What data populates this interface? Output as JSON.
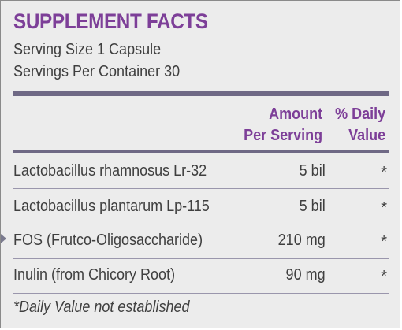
{
  "header": {
    "title": "SUPPLEMENT FACTS",
    "serving_size": "Serving Size 1 Capsule",
    "servings_per_container": "Servings Per Container 30"
  },
  "columns": {
    "amount_line1": "Amount",
    "amount_line2": "Per Serving",
    "dv_line1": "% Daily",
    "dv_line2": "Value"
  },
  "rows": [
    {
      "name": "Lactobacillus rhamnosus Lr-32",
      "amount": "5 bil",
      "dv": "*"
    },
    {
      "name": "Lactobacillus plantarum Lp-115",
      "amount": "5 bil",
      "dv": "*"
    },
    {
      "name": "FOS (Frutco-Oligosaccharide)",
      "amount": "210 mg",
      "dv": "*"
    },
    {
      "name": "Inulin (from Chicory Root)",
      "amount": "90 mg",
      "dv": "*"
    }
  ],
  "footnote": "*Daily Value not established",
  "colors": {
    "accent": "#7d3f98",
    "rule": "#6f6985",
    "panel_bg": "#ececec",
    "text": "#3f3f3f"
  }
}
